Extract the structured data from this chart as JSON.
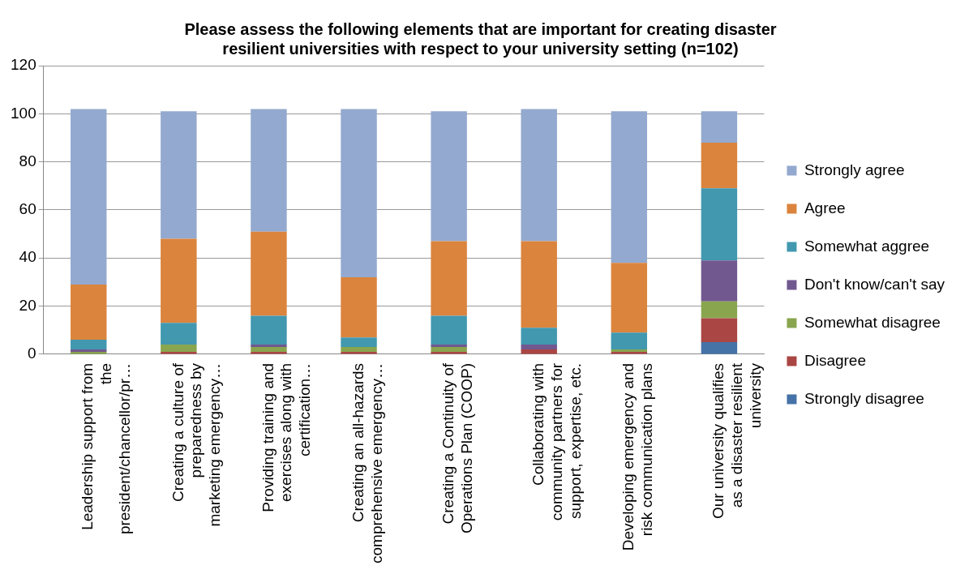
{
  "chart_data": {
    "type": "bar",
    "stacked": true,
    "title": "Please assess the following elements that are important for creating disaster resilient universities with respect to your university setting (n=102)",
    "categories": [
      "Leadership support from the president/chancellor/pr…",
      "Creating a culture of preparedness by marketing emergency…",
      "Providing training and exercises along with certification…",
      "Creating an all-hazards comprehensive emergency…",
      "Creating a Continuity of Operations Plan (COOP)",
      "Collaborating with community partners for support, expertise, etc.",
      "Developing emergency and risk communication plans",
      "Our university qualifies as a disaster resilient university"
    ],
    "series": [
      {
        "name": "Strongly disagree",
        "color": "#4572a7",
        "values": [
          0,
          0,
          0,
          0,
          0,
          0,
          0,
          5
        ]
      },
      {
        "name": "Disagree",
        "color": "#aa4643",
        "values": [
          0,
          1,
          1,
          1,
          1,
          2,
          1,
          10
        ]
      },
      {
        "name": "Somewhat disagree",
        "color": "#89a54e",
        "values": [
          1,
          3,
          2,
          2,
          2,
          0,
          1,
          7
        ]
      },
      {
        "name": "Don't know/can't say",
        "color": "#71588f",
        "values": [
          1,
          0,
          1,
          0,
          1,
          2,
          0,
          17
        ]
      },
      {
        "name": "Somewhat aggree",
        "color": "#4198af",
        "values": [
          4,
          9,
          12,
          4,
          12,
          7,
          7,
          30
        ]
      },
      {
        "name": "Agree",
        "color": "#db843d",
        "values": [
          23,
          35,
          35,
          25,
          31,
          36,
          29,
          19
        ]
      },
      {
        "name": "Strongly agree",
        "color": "#93a9cf",
        "values": [
          73,
          53,
          51,
          70,
          54,
          55,
          63,
          13
        ]
      }
    ],
    "ylim": [
      0,
      120
    ],
    "yticks": [
      0,
      20,
      40,
      60,
      80,
      100,
      120
    ],
    "grid": "y",
    "legend": "right"
  }
}
